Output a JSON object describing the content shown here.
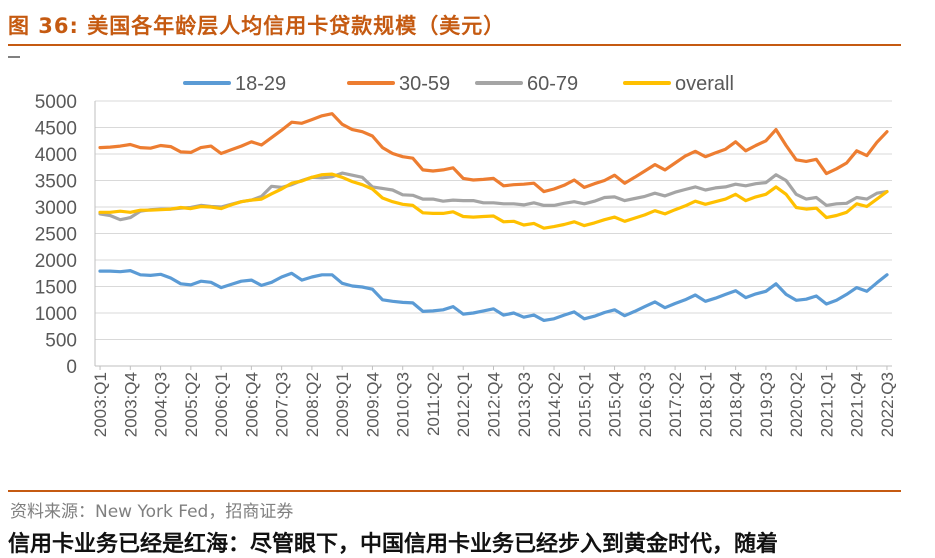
{
  "figure": {
    "title": "图 36:  美国各年龄层人均信用卡贷款规模（美元）",
    "source": "资料来源：New York Fed，招商证券",
    "cutoff_text": "信用卡业务已经是红海：尽管眼下，中国信用卡业务已经步入到黄金时代，随着"
  },
  "chart_data": {
    "type": "line",
    "ylim": [
      0,
      5000
    ],
    "yticks": [
      0,
      500,
      1000,
      1500,
      2000,
      2500,
      3000,
      3500,
      4000,
      4500,
      5000
    ],
    "grid": true,
    "legend_position": "top",
    "x_tick_labels": [
      "2003:Q1",
      "2003:Q4",
      "2004:Q3",
      "2005:Q2",
      "2006:Q1",
      "2006:Q4",
      "2007:Q3",
      "2008:Q2",
      "2009:Q1",
      "2009:Q4",
      "2010:Q3",
      "2011:Q2",
      "2012:Q1",
      "2012:Q4",
      "2013:Q3",
      "2014:Q2",
      "2015:Q1",
      "2015:Q4",
      "2016:Q3",
      "2017:Q2",
      "2018:Q1",
      "2018:Q4",
      "2019:Q3",
      "2020:Q2",
      "2021:Q1",
      "2021:Q4",
      "2022:Q3"
    ],
    "x": [
      "2003:Q1",
      "2003:Q2",
      "2003:Q3",
      "2003:Q4",
      "2004:Q1",
      "2004:Q2",
      "2004:Q3",
      "2004:Q4",
      "2005:Q1",
      "2005:Q2",
      "2005:Q3",
      "2005:Q4",
      "2006:Q1",
      "2006:Q2",
      "2006:Q3",
      "2006:Q4",
      "2007:Q1",
      "2007:Q2",
      "2007:Q3",
      "2007:Q4",
      "2008:Q1",
      "2008:Q2",
      "2008:Q3",
      "2008:Q4",
      "2009:Q1",
      "2009:Q2",
      "2009:Q3",
      "2009:Q4",
      "2010:Q1",
      "2010:Q2",
      "2010:Q3",
      "2010:Q4",
      "2011:Q1",
      "2011:Q2",
      "2011:Q3",
      "2011:Q4",
      "2012:Q1",
      "2012:Q2",
      "2012:Q3",
      "2012:Q4",
      "2013:Q1",
      "2013:Q2",
      "2013:Q3",
      "2013:Q4",
      "2014:Q1",
      "2014:Q2",
      "2014:Q3",
      "2014:Q4",
      "2015:Q1",
      "2015:Q2",
      "2015:Q3",
      "2015:Q4",
      "2016:Q1",
      "2016:Q2",
      "2016:Q3",
      "2016:Q4",
      "2017:Q1",
      "2017:Q2",
      "2017:Q3",
      "2017:Q4",
      "2018:Q1",
      "2018:Q2",
      "2018:Q3",
      "2018:Q4",
      "2019:Q1",
      "2019:Q2",
      "2019:Q3",
      "2019:Q4",
      "2020:Q1",
      "2020:Q2",
      "2020:Q3",
      "2020:Q4",
      "2021:Q1",
      "2021:Q2",
      "2021:Q3",
      "2021:Q4",
      "2022:Q1",
      "2022:Q2",
      "2022:Q3"
    ],
    "series": [
      {
        "name": "18-29",
        "color": "#5B9BD5",
        "values": [
          1790,
          1790,
          1780,
          1800,
          1720,
          1710,
          1730,
          1660,
          1550,
          1530,
          1600,
          1580,
          1480,
          1540,
          1600,
          1620,
          1520,
          1580,
          1680,
          1750,
          1620,
          1680,
          1720,
          1720,
          1560,
          1510,
          1490,
          1450,
          1250,
          1220,
          1200,
          1190,
          1030,
          1040,
          1060,
          1120,
          980,
          1000,
          1040,
          1080,
          960,
          1000,
          920,
          960,
          860,
          890,
          960,
          1020,
          890,
          940,
          1010,
          1060,
          950,
          1030,
          1120,
          1210,
          1100,
          1180,
          1250,
          1340,
          1220,
          1280,
          1350,
          1420,
          1290,
          1360,
          1410,
          1550,
          1350,
          1240,
          1260,
          1320,
          1170,
          1240,
          1350,
          1480,
          1410,
          1570,
          1720
        ]
      },
      {
        "name": "30-59",
        "color": "#ED7D31",
        "values": [
          4120,
          4130,
          4150,
          4180,
          4120,
          4110,
          4160,
          4140,
          4040,
          4030,
          4120,
          4150,
          4010,
          4080,
          4150,
          4230,
          4170,
          4310,
          4450,
          4600,
          4580,
          4650,
          4720,
          4760,
          4560,
          4460,
          4420,
          4340,
          4120,
          4010,
          3950,
          3920,
          3700,
          3680,
          3700,
          3740,
          3540,
          3510,
          3520,
          3540,
          3400,
          3420,
          3430,
          3450,
          3290,
          3340,
          3410,
          3510,
          3370,
          3440,
          3500,
          3600,
          3450,
          3560,
          3680,
          3800,
          3700,
          3830,
          3960,
          4050,
          3950,
          4020,
          4090,
          4230,
          4060,
          4160,
          4250,
          4460,
          4160,
          3890,
          3860,
          3900,
          3630,
          3720,
          3830,
          4060,
          3970,
          4220,
          4420
        ]
      },
      {
        "name": "60-79",
        "color": "#A5A5A5",
        "values": [
          2870,
          2840,
          2760,
          2800,
          2920,
          2950,
          2960,
          2960,
          2980,
          2990,
          3030,
          3010,
          3000,
          3050,
          3100,
          3130,
          3200,
          3390,
          3370,
          3420,
          3500,
          3560,
          3550,
          3570,
          3640,
          3600,
          3560,
          3380,
          3350,
          3320,
          3230,
          3220,
          3150,
          3150,
          3110,
          3130,
          3120,
          3120,
          3080,
          3080,
          3060,
          3060,
          3040,
          3080,
          3030,
          3030,
          3070,
          3100,
          3060,
          3110,
          3180,
          3190,
          3120,
          3160,
          3200,
          3260,
          3210,
          3280,
          3330,
          3380,
          3320,
          3360,
          3380,
          3430,
          3400,
          3440,
          3460,
          3610,
          3500,
          3240,
          3150,
          3180,
          3030,
          3060,
          3070,
          3180,
          3150,
          3260,
          3290
        ]
      },
      {
        "name": "overall",
        "color": "#FFC000",
        "values": [
          2900,
          2900,
          2920,
          2900,
          2940,
          2940,
          2950,
          2960,
          2990,
          2970,
          3010,
          3000,
          2970,
          3040,
          3100,
          3130,
          3150,
          3250,
          3340,
          3450,
          3490,
          3560,
          3610,
          3620,
          3560,
          3480,
          3420,
          3340,
          3170,
          3100,
          3050,
          3030,
          2890,
          2880,
          2880,
          2910,
          2820,
          2810,
          2820,
          2830,
          2720,
          2730,
          2660,
          2690,
          2600,
          2630,
          2670,
          2720,
          2650,
          2700,
          2760,
          2810,
          2730,
          2790,
          2850,
          2930,
          2870,
          2950,
          3020,
          3110,
          3050,
          3100,
          3150,
          3240,
          3120,
          3190,
          3240,
          3380,
          3240,
          2990,
          2960,
          2980,
          2800,
          2840,
          2900,
          3060,
          3010,
          3150,
          3290
        ]
      }
    ]
  }
}
